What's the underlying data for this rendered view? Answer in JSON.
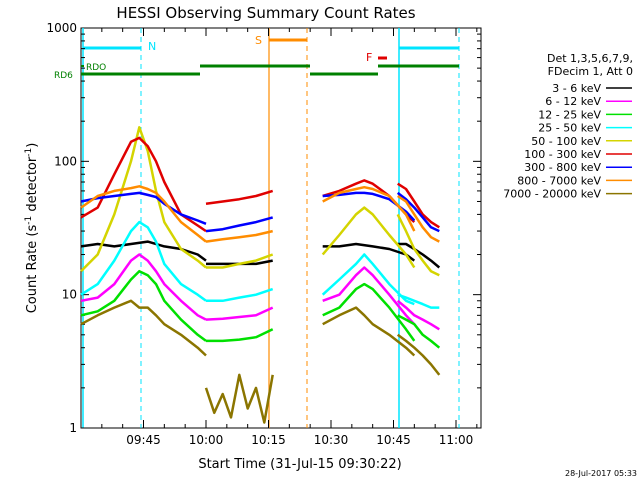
{
  "chart_data": {
    "type": "line",
    "title": "HESSI Observing Summary Count Rates",
    "xlabel": "Start Time (31-Jul-15 09:30:22)",
    "ylabel_main": "Count Rate (s",
    "ylabel_sup1": "-1",
    "ylabel_mid": " detector",
    "ylabel_sup2": "-1",
    "ylabel_end": ")",
    "yscale": "log",
    "ylim": [
      1,
      1000
    ],
    "xlim_minutes": [
      0,
      96
    ],
    "x_ticks": [
      {
        "t": 15,
        "label": "09:45"
      },
      {
        "t": 30,
        "label": "10:00"
      },
      {
        "t": 45,
        "label": "10:15"
      },
      {
        "t": 60,
        "label": "10:30"
      },
      {
        "t": 75,
        "label": "10:45"
      },
      {
        "t": 90,
        "label": "11:00"
      }
    ],
    "y_ticks": [
      {
        "v": 1,
        "label": "1"
      },
      {
        "v": 10,
        "label": "10"
      },
      {
        "v": 100,
        "label": "100"
      },
      {
        "v": 1000,
        "label": "1000"
      }
    ],
    "legend_header": [
      "Det 1,3,5,6,7,9,",
      "FDecim 1, Att 0"
    ],
    "legend_position": "right",
    "footer_timestamp": "28-Jul-2017 05:33",
    "flags": [
      {
        "name": "N",
        "color": "#00e5ff"
      },
      {
        "name": "S",
        "color": "#ff8c00"
      },
      {
        "name": "F",
        "color": "#e00000"
      },
      {
        "name": "RDO",
        "color": "#008000"
      },
      {
        "name": "RD6",
        "color": "#008000"
      }
    ],
    "series": [
      {
        "name": "3 - 6 keV",
        "color": "#000000",
        "segments": [
          {
            "x": [
              0,
              4,
              8,
              12,
              16,
              20,
              24,
              28,
              30
            ],
            "y": [
              23,
              24,
              23,
              24,
              25,
              23,
              22,
              20,
              18
            ]
          },
          {
            "x": [
              30,
              34,
              38,
              42,
              46
            ],
            "y": [
              17,
              17,
              17,
              17,
              18
            ]
          },
          {
            "x": [
              58,
              62,
              66,
              70,
              74,
              78,
              80
            ],
            "y": [
              23,
              23,
              24,
              23,
              22,
              20,
              18
            ]
          },
          {
            "x": [
              76,
              78,
              80,
              82,
              84,
              86
            ],
            "y": [
              24,
              24,
              22,
              20,
              18,
              16
            ]
          }
        ]
      },
      {
        "name": "6 - 12 keV",
        "color": "#ff00ff",
        "segments": [
          {
            "x": [
              0,
              4,
              8,
              12,
              14,
              16,
              18,
              20,
              24,
              28,
              30
            ],
            "y": [
              9,
              9.5,
              12,
              18,
              20,
              18,
              15,
              12,
              9,
              7,
              6.5
            ]
          },
          {
            "x": [
              30,
              34,
              38,
              42,
              46
            ],
            "y": [
              6.5,
              6.6,
              6.8,
              7,
              8
            ]
          },
          {
            "x": [
              58,
              62,
              66,
              68,
              70,
              74,
              78,
              80
            ],
            "y": [
              9,
              10,
              14,
              16,
              14,
              10,
              7,
              6
            ]
          },
          {
            "x": [
              76,
              78,
              80,
              82,
              84,
              86
            ],
            "y": [
              9,
              8,
              7,
              6.5,
              6,
              5.5
            ]
          }
        ]
      },
      {
        "name": "12 - 25 keV",
        "color": "#00e000",
        "segments": [
          {
            "x": [
              0,
              4,
              8,
              12,
              14,
              16,
              18,
              20,
              24,
              28,
              30
            ],
            "y": [
              7,
              7.5,
              9,
              13,
              15,
              14,
              12,
              9,
              6.5,
              5,
              4.5
            ]
          },
          {
            "x": [
              30,
              34,
              38,
              42,
              46
            ],
            "y": [
              4.5,
              4.5,
              4.6,
              4.8,
              5.5
            ]
          },
          {
            "x": [
              58,
              62,
              66,
              68,
              70,
              74,
              78,
              80
            ],
            "y": [
              7,
              8,
              11,
              12,
              11,
              8,
              5.5,
              4.5
            ]
          },
          {
            "x": [
              76,
              78,
              80,
              82,
              84,
              86
            ],
            "y": [
              7,
              6.5,
              6,
              5,
              4.5,
              4
            ]
          }
        ]
      },
      {
        "name": "25 - 50 keV",
        "color": "#00ffff",
        "segments": [
          {
            "x": [
              0,
              4,
              8,
              12,
              14,
              16,
              18,
              20,
              24,
              28,
              30
            ],
            "y": [
              10,
              12,
              18,
              30,
              35,
              32,
              25,
              17,
              12,
              10,
              9
            ]
          },
          {
            "x": [
              30,
              34,
              38,
              42,
              46
            ],
            "y": [
              9,
              9,
              9.5,
              10,
              11
            ]
          },
          {
            "x": [
              58,
              62,
              66,
              68,
              70,
              74,
              78,
              80
            ],
            "y": [
              10,
              13,
              17,
              20,
              17,
              12,
              9,
              8.5
            ]
          },
          {
            "x": [
              76,
              78,
              80,
              82,
              84,
              86
            ],
            "y": [
              10,
              9.5,
              9,
              8.5,
              8,
              8
            ]
          }
        ]
      },
      {
        "name": "50 - 100 keV",
        "color": "#d4d400",
        "segments": [
          {
            "x": [
              0,
              4,
              8,
              12,
              14,
              16,
              18,
              20,
              24,
              28,
              30
            ],
            "y": [
              15,
              20,
              40,
              100,
              180,
              120,
              60,
              35,
              22,
              18,
              16
            ]
          },
          {
            "x": [
              30,
              34,
              38,
              42,
              46
            ],
            "y": [
              16,
              16,
              17,
              18,
              20
            ]
          },
          {
            "x": [
              58,
              62,
              66,
              68,
              70,
              74,
              78,
              80
            ],
            "y": [
              20,
              28,
              40,
              45,
              40,
              28,
              20,
              16
            ]
          },
          {
            "x": [
              76,
              78,
              80,
              82,
              84,
              86
            ],
            "y": [
              40,
              30,
              22,
              18,
              15,
              14
            ]
          }
        ]
      },
      {
        "name": "100 - 300 keV",
        "color": "#e00000",
        "segments": [
          {
            "x": [
              0,
              4,
              8,
              12,
              14,
              16,
              18,
              20,
              24,
              28,
              30
            ],
            "y": [
              38,
              45,
              80,
              140,
              150,
              130,
              100,
              70,
              40,
              33,
              30
            ]
          },
          {
            "x": [
              30,
              34,
              38,
              42,
              46
            ],
            "y": [
              48,
              50,
              52,
              55,
              60
            ]
          },
          {
            "x": [
              58,
              62,
              66,
              68,
              70,
              74,
              78,
              80
            ],
            "y": [
              55,
              60,
              68,
              72,
              68,
              55,
              40,
              35
            ]
          },
          {
            "x": [
              76,
              78,
              80,
              82,
              84,
              86
            ],
            "y": [
              68,
              62,
              50,
              40,
              35,
              32
            ]
          }
        ]
      },
      {
        "name": "300 - 800 keV",
        "color": "#0000ff",
        "segments": [
          {
            "x": [
              0,
              4,
              8,
              12,
              14,
              16,
              18,
              20,
              24,
              28,
              30
            ],
            "y": [
              50,
              53,
              55,
              57,
              58,
              56,
              54,
              48,
              40,
              36,
              34
            ]
          },
          {
            "x": [
              30,
              34,
              38,
              42,
              46
            ],
            "y": [
              30,
              31,
              33,
              35,
              38
            ]
          },
          {
            "x": [
              58,
              62,
              66,
              68,
              70,
              74,
              78,
              80
            ],
            "y": [
              55,
              56,
              58,
              58,
              57,
              52,
              42,
              36
            ]
          },
          {
            "x": [
              76,
              78,
              80,
              82,
              84,
              86
            ],
            "y": [
              58,
              52,
              45,
              38,
              32,
              30
            ]
          }
        ]
      },
      {
        "name": "800 - 7000 keV",
        "color": "#ff8c00",
        "segments": [
          {
            "x": [
              0,
              4,
              8,
              12,
              14,
              16,
              18,
              20,
              24,
              28,
              30
            ],
            "y": [
              45,
              55,
              60,
              63,
              65,
              62,
              58,
              50,
              35,
              28,
              25
            ]
          },
          {
            "x": [
              30,
              34,
              38,
              42,
              46
            ],
            "y": [
              25,
              26,
              27,
              28,
              30
            ]
          },
          {
            "x": [
              58,
              62,
              66,
              68,
              70,
              74,
              78,
              80
            ],
            "y": [
              50,
              58,
              62,
              64,
              62,
              55,
              40,
              30
            ]
          },
          {
            "x": [
              76,
              78,
              80,
              82,
              84,
              86
            ],
            "y": [
              55,
              50,
              40,
              32,
              27,
              25
            ]
          }
        ]
      },
      {
        "name": "7000 - 20000 keV",
        "color": "#8b7500",
        "segments": [
          {
            "x": [
              0,
              4,
              8,
              12,
              14,
              16,
              18,
              20,
              24,
              28,
              30
            ],
            "y": [
              6,
              7,
              8,
              9,
              8,
              8,
              7,
              6,
              5,
              4,
              3.5
            ]
          },
          {
            "x": [
              30,
              32,
              34,
              36,
              38,
              40,
              42,
              44,
              46
            ],
            "y": [
              2,
              1.3,
              1.8,
              1.2,
              2.5,
              1.4,
              2,
              1.1,
              2.5
            ]
          },
          {
            "x": [
              58,
              62,
              66,
              68,
              70,
              74,
              78,
              80
            ],
            "y": [
              6,
              7,
              8,
              7,
              6,
              5,
              4,
              3.5
            ]
          },
          {
            "x": [
              76,
              78,
              80,
              82,
              84,
              86
            ],
            "y": [
              5,
              4.5,
              4,
              3.5,
              3,
              2.5
            ]
          }
        ]
      }
    ]
  }
}
